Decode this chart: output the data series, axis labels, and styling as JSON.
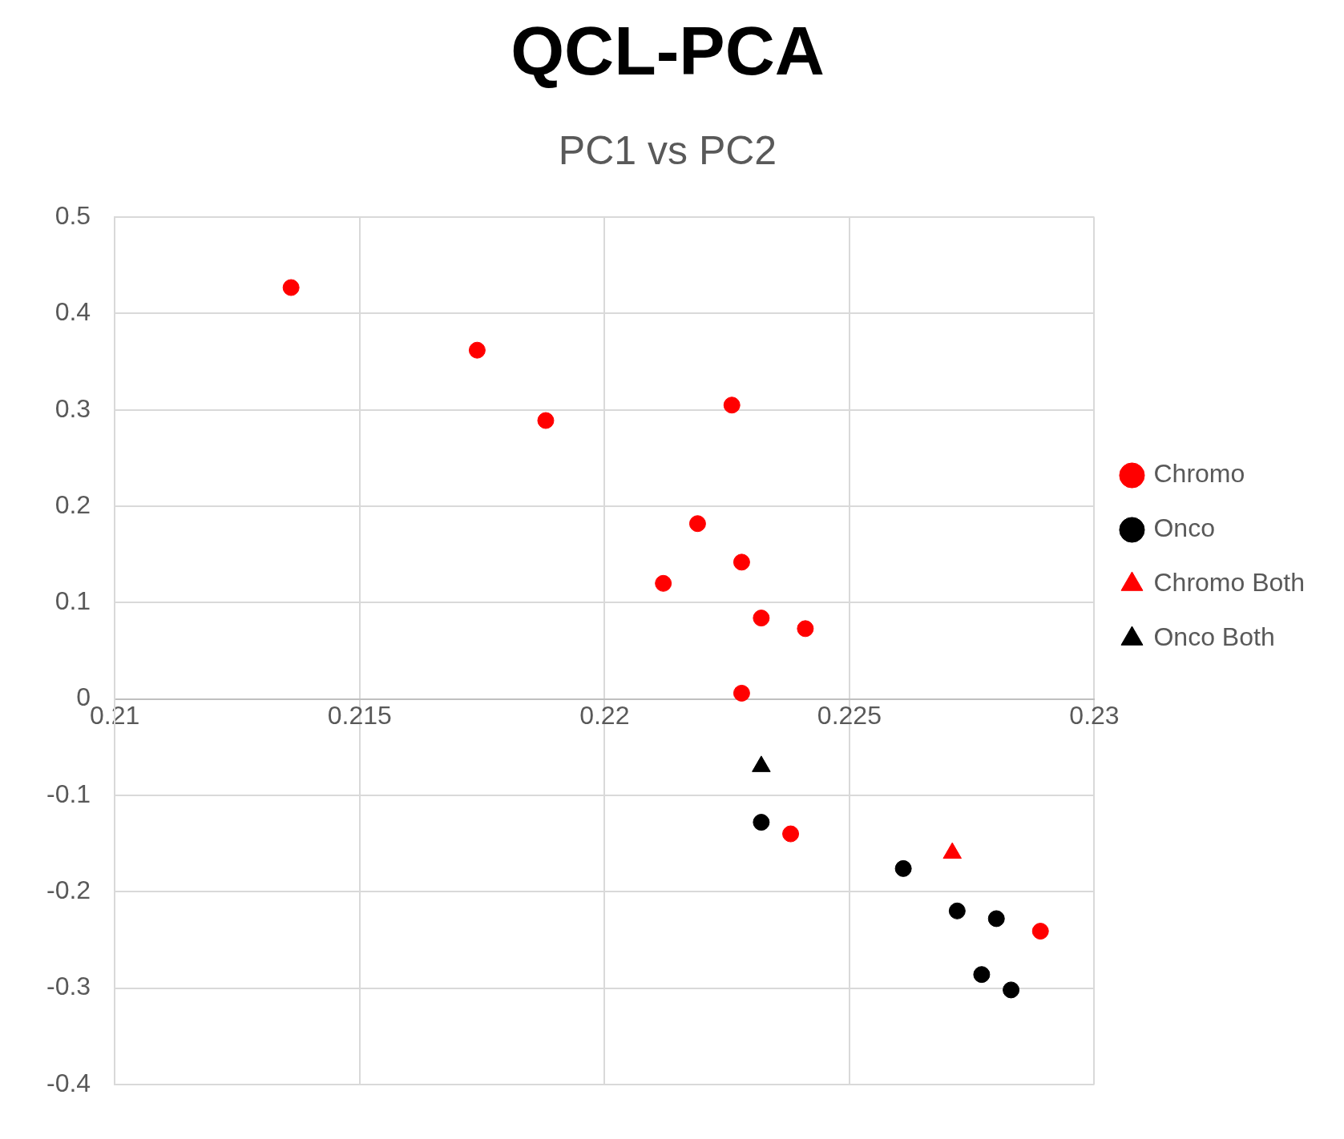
{
  "chart_data": {
    "type": "scatter",
    "title": "QCL-PCA",
    "subtitle": "PC1 vs PC2",
    "xlim": [
      0.21,
      0.23
    ],
    "xticks": [
      0.21,
      0.215,
      0.22,
      0.225,
      0.23
    ],
    "ylim": [
      -0.4,
      0.5
    ],
    "yticks": [
      -0.4,
      -0.3,
      -0.2,
      -0.1,
      0,
      0.1,
      0.2,
      0.3,
      0.4,
      0.5
    ],
    "grid": true,
    "legend": "right",
    "series": [
      {
        "name": "Chromo",
        "color": "#ff0000",
        "marker": "circle",
        "x": [
          0.2136,
          0.2174,
          0.2188,
          0.2226,
          0.2219,
          0.2228,
          0.2212,
          0.2232,
          0.2241,
          0.2228,
          0.2238,
          0.2289
        ],
        "values": [
          0.427,
          0.362,
          0.289,
          0.305,
          0.182,
          0.142,
          0.12,
          0.084,
          0.073,
          0.006,
          -0.14,
          -0.241
        ]
      },
      {
        "name": "Onco",
        "color": "#000000",
        "marker": "circle",
        "x": [
          0.2232,
          0.2261,
          0.2272,
          0.228,
          0.2277,
          0.2283
        ],
        "values": [
          -0.128,
          -0.176,
          -0.22,
          -0.228,
          -0.286,
          -0.302
        ]
      },
      {
        "name": "Chromo Both",
        "color": "#ff0000",
        "marker": "triangle",
        "x": [
          0.2271
        ],
        "values": [
          -0.16
        ]
      },
      {
        "name": "Onco Both",
        "color": "#000000",
        "marker": "triangle",
        "x": [
          0.2232
        ],
        "values": [
          -0.07
        ]
      }
    ]
  }
}
